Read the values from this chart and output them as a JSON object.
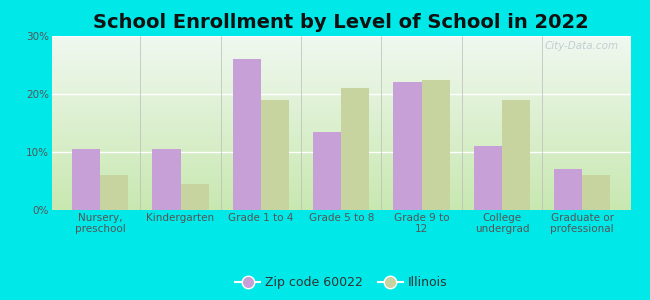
{
  "title": "School Enrollment by Level of School in 2022",
  "categories": [
    "Nursery,\npreschool",
    "Kindergarten",
    "Grade 1 to 4",
    "Grade 5 to 8",
    "Grade 9 to\n12",
    "College\nundergrad",
    "Graduate or\nprofessional"
  ],
  "zip_values": [
    10.5,
    10.5,
    26.0,
    13.5,
    22.0,
    11.0,
    7.0
  ],
  "il_values": [
    6.0,
    4.5,
    19.0,
    21.0,
    22.5,
    19.0,
    6.0
  ],
  "zip_color": "#c8a0d8",
  "il_color": "#c8d4a0",
  "background_outer": "#00e8e8",
  "background_plot_bottom": "#c8e8b0",
  "background_plot_top": "#f0f8f0",
  "ylim": [
    0,
    30
  ],
  "yticks": [
    0,
    10,
    20,
    30
  ],
  "ytick_labels": [
    "0%",
    "10%",
    "20%",
    "30%"
  ],
  "legend_zip_label": "Zip code 60022",
  "legend_il_label": "Illinois",
  "bar_width": 0.35,
  "title_fontsize": 14,
  "tick_fontsize": 7.5,
  "legend_fontsize": 9,
  "watermark_text": "City-Data.com",
  "watermark_color": "#b0bcc8",
  "watermark_alpha": 0.7
}
